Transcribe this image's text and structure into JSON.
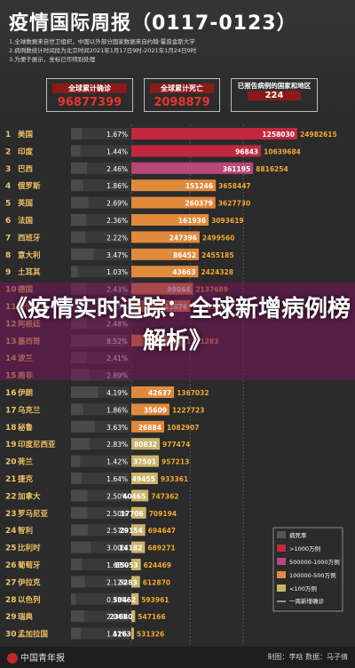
{
  "title": "疫情国际周报（0117-0123）",
  "notes": [
    "1.全球数据来自世卫组织，中国以外部分国家数据来自约翰·霍普金斯大学",
    "2.病例数统计时间段为北京时间2021年1月17日9时-2021年1月24日9时",
    "3.为便于展示，坐标已作特别处理"
  ],
  "stats": [
    {
      "label": "全球累计确诊",
      "value": "96877399"
    },
    {
      "label": "全球累计死亡",
      "value": "2098879"
    },
    {
      "label": "已报告病例的国家和地区",
      "value": "224"
    }
  ],
  "overlay": "《疫情实时追踪：全球新增病例榜解析》",
  "footer": {
    "logo": "中国青年报",
    "credit": "制图：李晗    数据：马子倩"
  },
  "colors": {
    "gt10m": "#c0283e",
    "5m_10m": "#b8477a",
    "1m_5m": "#e08a3c",
    "lt1m": "#c9b46a",
    "bg": "#2b2b2b"
  },
  "chart_data": {
    "type": "bar",
    "categories": [
      "美国",
      "印度",
      "巴西",
      "俄罗斯",
      "英国",
      "法国",
      "西班牙",
      "意大利",
      "土耳其",
      "德国",
      "哥伦比亚",
      "阿根廷",
      "墨西哥",
      "波兰",
      "南非",
      "伊朗",
      "乌克兰",
      "秘鲁",
      "印度尼西亚",
      "荷兰",
      "捷克",
      "加拿大",
      "罗马尼亚",
      "智利",
      "比利时",
      "葡萄牙",
      "伊拉克",
      "以色列",
      "瑞典",
      "孟加拉国"
    ],
    "ranks": [
      1,
      2,
      3,
      4,
      5,
      6,
      7,
      8,
      9,
      10,
      11,
      12,
      13,
      14,
      15,
      16,
      17,
      18,
      19,
      20,
      21,
      22,
      23,
      24,
      25,
      26,
      27,
      28,
      29,
      30
    ],
    "mortality": [
      "1.67%",
      "1.44%",
      "2.46%",
      "1.86%",
      "2.69%",
      "2.36%",
      "2.22%",
      "3.47%",
      "1.03%",
      "2.43%",
      "2.55%",
      "2.48%",
      "8.52%",
      "2.41%",
      "2.89%",
      "4.19%",
      "1.86%",
      "3.63%",
      "2.83%",
      "1.42%",
      "1.64%",
      "2.50%",
      "2.50%",
      "2.57%",
      "3.00%",
      "1.63%",
      "2.12%",
      "0.73%",
      "2.04%",
      "1.51%"
    ],
    "series": [
      {
        "name": "一周新增确诊",
        "values": [
          1258030,
          96843,
          361195,
          151246,
          260379,
          161936,
          247396,
          86452,
          43663,
          99044,
          111076,
          null,
          122035,
          null,
          null,
          42637,
          35609,
          26884,
          80832,
          37501,
          49455,
          40465,
          17706,
          29154,
          14182,
          85053,
          5283,
          50462,
          23680,
          4263
        ]
      },
      {
        "name": "累计确诊",
        "values": [
          24982615,
          10639684,
          8816254,
          3658447,
          3627730,
          3093619,
          2499560,
          2455185,
          2424328,
          2137689,
          2002969,
          null,
          1711283,
          null,
          null,
          1367032,
          1227723,
          1082907,
          977474,
          957213,
          933361,
          747362,
          709194,
          694647,
          689271,
          624469,
          612870,
          593961,
          547166,
          531326
        ]
      }
    ],
    "categories_legend": [
      "病死率",
      ">1000万例",
      "500000-1000万例",
      "100000-500万例",
      "<100万例",
      "一周新增确诊"
    ],
    "x_ticks": [
      "500000",
      "2000000",
      "7000000"
    ],
    "xlabel": "",
    "ylabel": ""
  }
}
